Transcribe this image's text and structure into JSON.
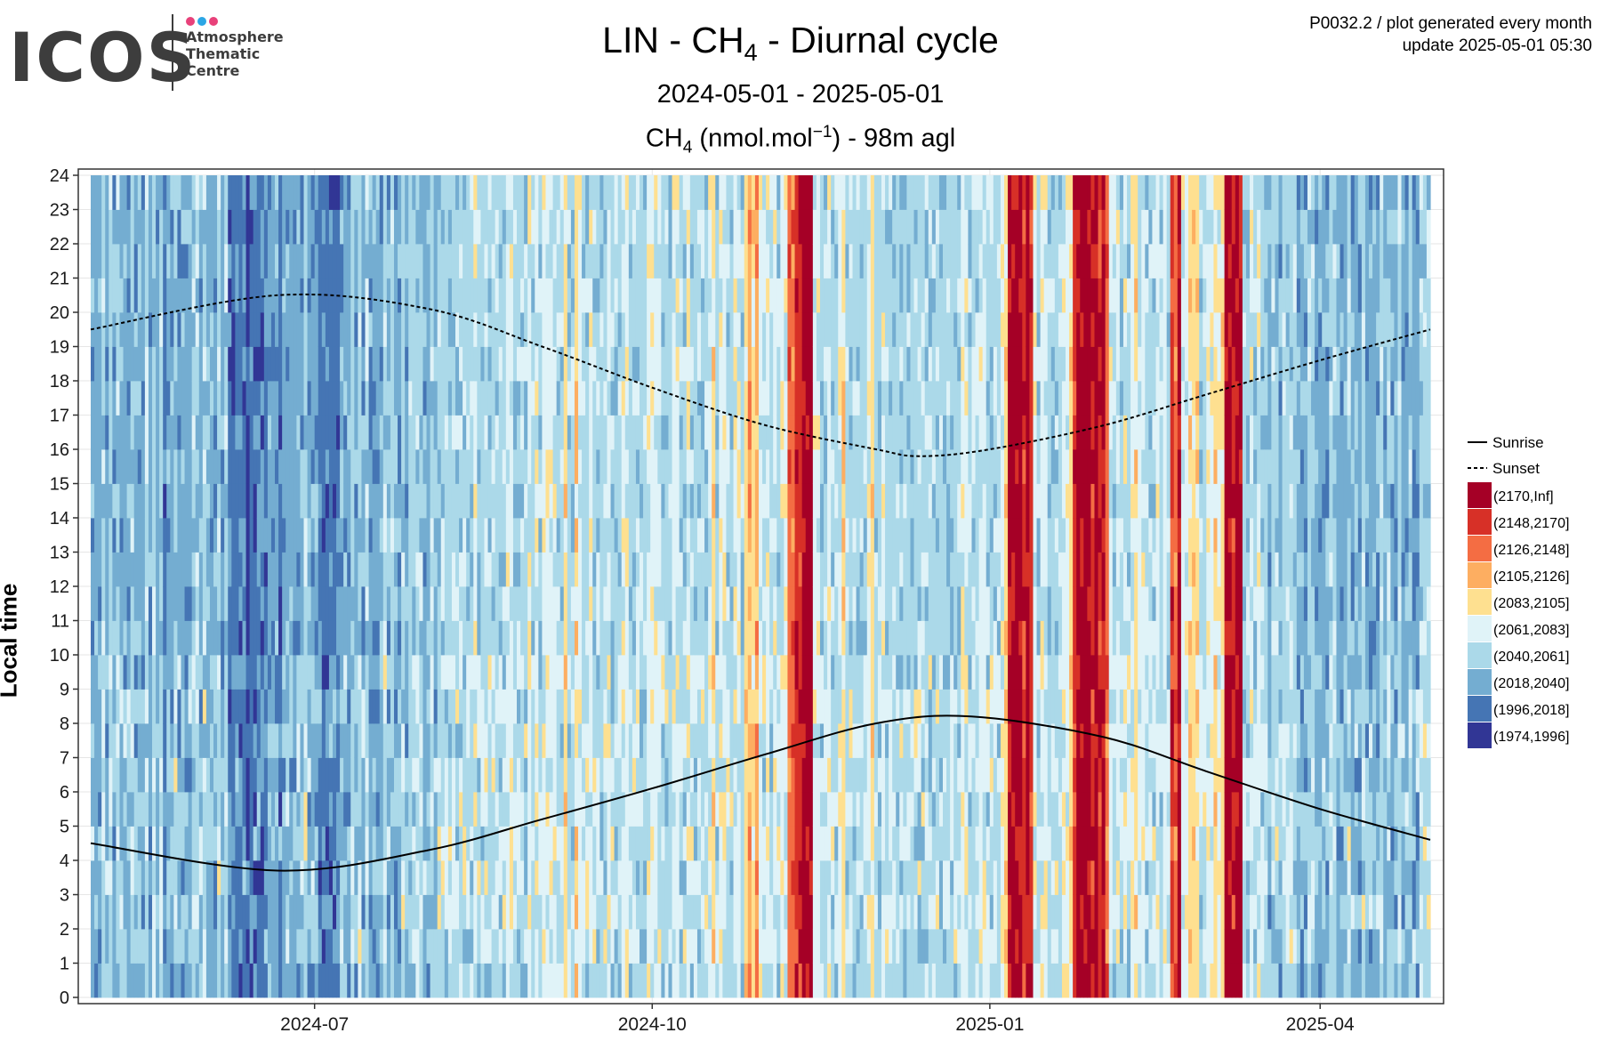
{
  "logo": {
    "text": "ICOS",
    "lines": [
      "Atmosphere",
      "Thematic",
      "Centre"
    ],
    "dot_colors": [
      "#e8417a",
      "#2ba6e5",
      "#e8417a"
    ]
  },
  "title": {
    "prefix": "LIN - CH",
    "sub": "4",
    "suffix": " - Diurnal cycle"
  },
  "subtitle": "2024-05-01 - 2025-05-01",
  "unit_title": {
    "a": "CH",
    "sub": "4",
    "b": " (nmol.mol",
    "sup": "−1",
    "c": ") - 98m agl"
  },
  "meta": {
    "line1": "P0032.2 / plot generated every month",
    "line2": "update  2025-05-01 05:30"
  },
  "chart_data": {
    "type": "heatmap",
    "x_range": [
      "2024-05-01",
      "2025-05-01"
    ],
    "x_ticks": [
      "2024-07",
      "2024-10",
      "2025-01",
      "2025-04"
    ],
    "ylabel": "Local time",
    "ylim": [
      0,
      24
    ],
    "y_ticks": [
      0,
      1,
      2,
      3,
      4,
      5,
      6,
      7,
      8,
      9,
      10,
      11,
      12,
      13,
      14,
      15,
      16,
      17,
      18,
      19,
      20,
      21,
      22,
      23,
      24
    ],
    "grid": true,
    "legend_position": "right",
    "lines": [
      {
        "label": "Sunrise",
        "style": "solid",
        "points": [
          [
            "2024-05-01",
            4.5
          ],
          [
            "2024-06-21",
            3.7
          ],
          [
            "2024-08-01",
            4.3
          ],
          [
            "2024-09-01",
            5.2
          ],
          [
            "2024-10-01",
            6.1
          ],
          [
            "2024-11-01",
            7.1
          ],
          [
            "2024-12-01",
            8.0
          ],
          [
            "2024-12-27",
            8.2
          ],
          [
            "2025-02-01",
            7.6
          ],
          [
            "2025-03-01",
            6.6
          ],
          [
            "2025-04-01",
            5.5
          ],
          [
            "2025-05-01",
            4.6
          ]
        ]
      },
      {
        "label": "Sunset",
        "style": "dashed",
        "points": [
          [
            "2024-05-01",
            19.5
          ],
          [
            "2024-06-21",
            20.5
          ],
          [
            "2024-08-01",
            20.1
          ],
          [
            "2024-09-01",
            19.0
          ],
          [
            "2024-10-01",
            17.8
          ],
          [
            "2024-11-01",
            16.7
          ],
          [
            "2024-12-01",
            16.0
          ],
          [
            "2024-12-13",
            15.8
          ],
          [
            "2025-01-01",
            16.0
          ],
          [
            "2025-02-01",
            16.7
          ],
          [
            "2025-03-01",
            17.6
          ],
          [
            "2025-04-01",
            18.6
          ],
          [
            "2025-05-01",
            19.5
          ]
        ]
      }
    ],
    "bins": [
      {
        "label": "(2170,Inf]",
        "color": "#a50026"
      },
      {
        "label": "(2148,2170]",
        "color": "#d73027"
      },
      {
        "label": "(2126,2148]",
        "color": "#f46d43"
      },
      {
        "label": "(2105,2126]",
        "color": "#fdae61"
      },
      {
        "label": "(2083,2105]",
        "color": "#fee090"
      },
      {
        "label": "(2061,2083]",
        "color": "#e0f3f8"
      },
      {
        "label": "(2040,2061]",
        "color": "#abd9e9"
      },
      {
        "label": "(2018,2040]",
        "color": "#74add1"
      },
      {
        "label": "(1996,2018]",
        "color": "#4575b4"
      },
      {
        "label": "(1974,1996]",
        "color": "#313695"
      }
    ],
    "daily_mean_bin": [
      7,
      7,
      7,
      6,
      7,
      6,
      7,
      6,
      7,
      7,
      7,
      6,
      7,
      7,
      7,
      6,
      7,
      6,
      7,
      6,
      8,
      7,
      7,
      6,
      7,
      7,
      7,
      7,
      6,
      6,
      7,
      6,
      7,
      7,
      7,
      6,
      7,
      6,
      8,
      8,
      8,
      8,
      8,
      9,
      8,
      8,
      8,
      8,
      8,
      7,
      7,
      7,
      8,
      7,
      7,
      7,
      7,
      7,
      7,
      6,
      7,
      7,
      7,
      8,
      8,
      8,
      8,
      8,
      8,
      7,
      7,
      7,
      6,
      7,
      6,
      7,
      6,
      7,
      7,
      7,
      7,
      6,
      7,
      6,
      7,
      7,
      6,
      7,
      6,
      6,
      6,
      6,
      7,
      7,
      6,
      7,
      6,
      6,
      6,
      6,
      6,
      6,
      6,
      6,
      6,
      6,
      5,
      6,
      6,
      6,
      6,
      6,
      6,
      6,
      6,
      5,
      5,
      6,
      6,
      6,
      6,
      5,
      6,
      5,
      6,
      5,
      5,
      5,
      5,
      6,
      6,
      4,
      6,
      6,
      4,
      5,
      6,
      6,
      5,
      6,
      6,
      6,
      6,
      5,
      6,
      6,
      6,
      5,
      5,
      6,
      6,
      6,
      6,
      6,
      5,
      5,
      5,
      5,
      6,
      6,
      6,
      5,
      5,
      6,
      6,
      5,
      6,
      6,
      6,
      6,
      6,
      5,
      4,
      6,
      5,
      5,
      6,
      6,
      5,
      5,
      6,
      4,
      3,
      4,
      3,
      5,
      6,
      5,
      6,
      5,
      6,
      5,
      5,
      2,
      2,
      1,
      1,
      0,
      0,
      0,
      5,
      5,
      6,
      6,
      5,
      6,
      6,
      5,
      4,
      6,
      6,
      6,
      6,
      6,
      6,
      5,
      4,
      6,
      6,
      5,
      6,
      6,
      6,
      6,
      6,
      6,
      6,
      6,
      6,
      6,
      6,
      6,
      6,
      6,
      6,
      6,
      6,
      6,
      6,
      6,
      6,
      5,
      5,
      6,
      6,
      6,
      5,
      5,
      6,
      6,
      6,
      6,
      5,
      4,
      0,
      0,
      0,
      0,
      1,
      0,
      1,
      5,
      6,
      5,
      5,
      6,
      6,
      6,
      6,
      5,
      5,
      4,
      1,
      0,
      0,
      0,
      0,
      1,
      0,
      1,
      0,
      2,
      5,
      6,
      5,
      6,
      5,
      6,
      5,
      4,
      5,
      5,
      6,
      6,
      6,
      5,
      6,
      5,
      6,
      1,
      2,
      0,
      5,
      5,
      4,
      4,
      4,
      6,
      6,
      5,
      5,
      4,
      5,
      4,
      0,
      0,
      1,
      0,
      0,
      6,
      6,
      5,
      6,
      5,
      6,
      6,
      7,
      6,
      6,
      7,
      6,
      6,
      6,
      6,
      7,
      7,
      7,
      6,
      6,
      7,
      7,
      7,
      7,
      6,
      6,
      7,
      7,
      7,
      6,
      7,
      7,
      7,
      6,
      7,
      7,
      7,
      7,
      6,
      7,
      6,
      7,
      7,
      6,
      7,
      7,
      6,
      7,
      7,
      6,
      6,
      6
    ]
  },
  "legend": {
    "sunrise_label": "Sunrise",
    "sunset_label": "Sunset"
  }
}
